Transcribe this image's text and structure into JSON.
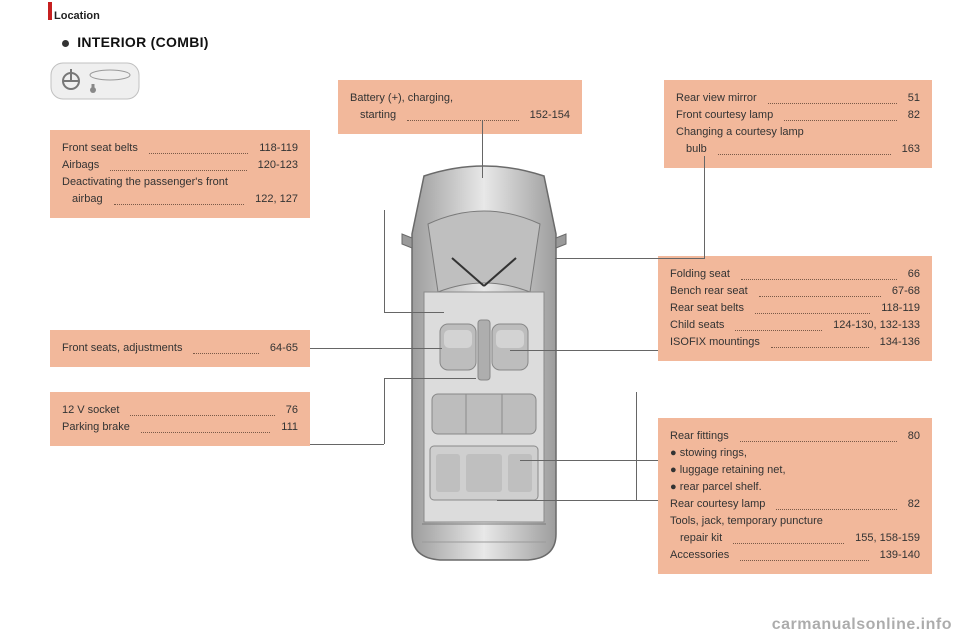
{
  "crumb": "Location",
  "heading": "INTERIOR (COMBI)",
  "theme": {
    "boxFill": "#f2b89b",
    "leaderColor": "#666666"
  },
  "boxes": {
    "battery": [
      {
        "lbl": "Battery (+), charging,",
        "pg": ""
      },
      {
        "lbl": "starting",
        "pg": "152-154",
        "indent": true
      }
    ],
    "mirror": [
      {
        "lbl": "Rear view mirror",
        "pg": "51"
      },
      {
        "lbl": "Front courtesy lamp",
        "pg": "82"
      },
      {
        "lbl": "Changing a courtesy lamp",
        "pg": ""
      },
      {
        "lbl": "bulb",
        "pg": "163",
        "indent": true
      }
    ],
    "seatbelts": [
      {
        "lbl": "Front seat belts",
        "pg": "118-119"
      },
      {
        "lbl": "Airbags",
        "pg": "120-123"
      },
      {
        "lbl": "Deactivating the passenger's front",
        "pg": ""
      },
      {
        "lbl": "airbag",
        "pg": "122, 127",
        "indent": true
      }
    ],
    "frontseats": [
      {
        "lbl": "Front seats, adjustments",
        "pg": "64-65"
      }
    ],
    "socket": [
      {
        "lbl": "12 V socket",
        "pg": "76"
      },
      {
        "lbl": "Parking brake",
        "pg": "111"
      }
    ],
    "folding": [
      {
        "lbl": "Folding seat",
        "pg": "66"
      },
      {
        "lbl": "Bench rear seat",
        "pg": "67-68"
      },
      {
        "lbl": "Rear seat belts",
        "pg": "118-119"
      },
      {
        "lbl": "Child seats",
        "pg": "124-130, 132-133"
      },
      {
        "lbl": "ISOFIX mountings",
        "pg": "134-136"
      }
    ],
    "rear": [
      {
        "lbl": "Rear fittings",
        "pg": "80"
      },
      {
        "lbl": "● stowing rings,",
        "pg": ""
      },
      {
        "lbl": "● luggage retaining net,",
        "pg": ""
      },
      {
        "lbl": "● rear parcel shelf.",
        "pg": ""
      },
      {
        "lbl": "Rear courtesy lamp",
        "pg": "82"
      },
      {
        "lbl": "Tools, jack, temporary puncture",
        "pg": ""
      },
      {
        "lbl": "repair kit",
        "pg": "155, 158-159",
        "indent": true
      },
      {
        "lbl": "Accessories",
        "pg": "139-140"
      }
    ]
  },
  "watermark": "carmanualsonline.info"
}
